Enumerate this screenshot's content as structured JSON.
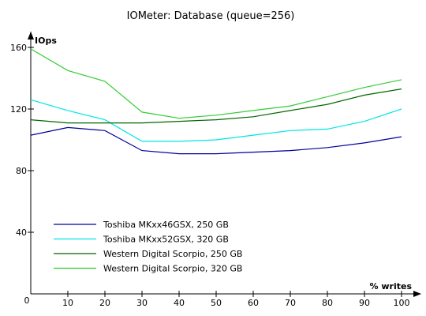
{
  "chart_data": {
    "type": "line",
    "title": "IOMeter: Database (queue=256)",
    "xlabel": "% writes",
    "ylabel": "IOps",
    "x": [
      0,
      10,
      20,
      30,
      40,
      50,
      60,
      70,
      80,
      90,
      100
    ],
    "xlim": [
      0,
      100
    ],
    "ylim": [
      0,
      160
    ],
    "xticks": [
      0,
      10,
      20,
      30,
      40,
      50,
      60,
      70,
      80,
      90,
      100
    ],
    "yticks": [
      40,
      80,
      120,
      160
    ],
    "grid": false,
    "legend_position": "bottom-left",
    "series": [
      {
        "name": "Toshiba MKxx46GSX, 250 GB",
        "color": "#000099",
        "values": [
          103,
          108,
          106,
          93,
          91,
          91,
          92,
          93,
          95,
          98,
          102
        ]
      },
      {
        "name": "Toshiba MKxx52GSX, 320 GB",
        "color": "#00e5e5",
        "values": [
          126,
          119,
          113,
          99,
          99,
          100,
          103,
          106,
          107,
          112,
          120
        ]
      },
      {
        "name": "Western Digital Scorpio, 250 GB",
        "color": "#006600",
        "values": [
          113,
          111,
          111,
          111,
          112,
          113,
          115,
          119,
          123,
          129,
          133
        ]
      },
      {
        "name": "Western Digital Scorpio, 320 GB",
        "color": "#33cc33",
        "values": [
          159,
          145,
          138,
          118,
          114,
          116,
          119,
          122,
          128,
          134,
          139
        ]
      }
    ]
  }
}
